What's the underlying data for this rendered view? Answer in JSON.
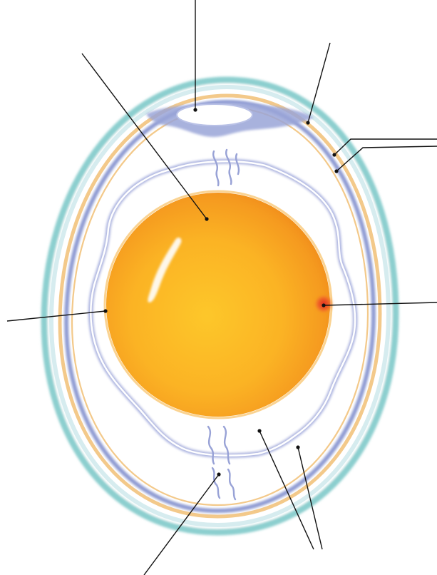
{
  "diagram": {
    "subject": "egg-cross-section",
    "colors": {
      "background": "#ffffff",
      "shell_outer": "#8ccfcf",
      "shell_membrane": "#f3c98a",
      "inner_membrane": "#8f9bd3",
      "albumen_edge": "#aab2df",
      "yolk_center": "#fbbf24",
      "yolk_edge": "#f08a1c",
      "germinal_disc": "#e8452a",
      "leader_line": "#111111"
    },
    "labels": [
      {
        "id": "air-cell",
        "text": ""
      },
      {
        "id": "yolk",
        "text": ""
      },
      {
        "id": "shell",
        "text": ""
      },
      {
        "id": "outer-shell-membrane",
        "text": ""
      },
      {
        "id": "inner-shell-membrane",
        "text": ""
      },
      {
        "id": "vitelline-membrane",
        "text": ""
      },
      {
        "id": "germinal-disc",
        "text": ""
      },
      {
        "id": "chalaza",
        "text": ""
      },
      {
        "id": "albumen",
        "text": ""
      }
    ]
  }
}
